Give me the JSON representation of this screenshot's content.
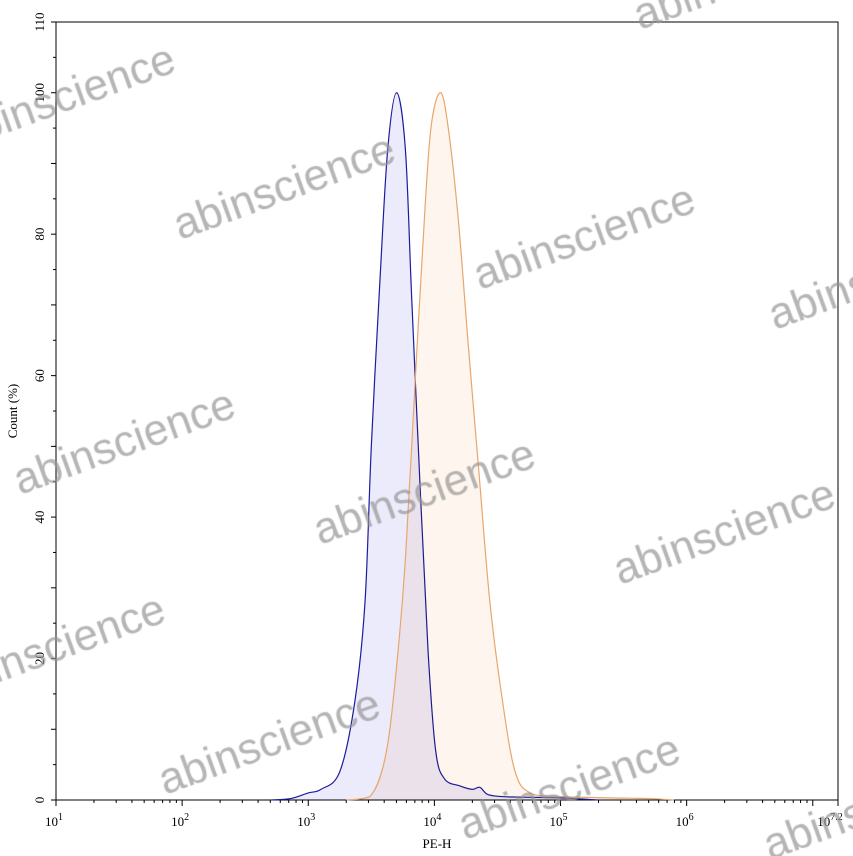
{
  "chart_data": {
    "type": "area",
    "xlabel": "PE-H",
    "ylabel": "Count (%)",
    "xscale": "log10",
    "xlim_log10": [
      1,
      7.2
    ],
    "ylim": [
      0,
      110
    ],
    "x_tick_labels": [
      {
        "base": "10",
        "exp": "1"
      },
      {
        "base": "10",
        "exp": "2"
      },
      {
        "base": "10",
        "exp": "3"
      },
      {
        "base": "10",
        "exp": "4"
      },
      {
        "base": "10",
        "exp": "5"
      },
      {
        "base": "10",
        "exp": "6"
      },
      {
        "base": "10",
        "exp": "7.2"
      }
    ],
    "y_ticks": [
      0,
      20,
      40,
      60,
      80,
      100,
      110
    ],
    "grid": false,
    "series": [
      {
        "line_color": "#1c1c9c",
        "fill_color": "#e4e4fa",
        "log10_x": [
          2.7,
          2.86,
          3.0,
          3.1,
          3.25,
          3.37,
          3.45,
          3.5,
          3.57,
          3.63,
          3.7,
          3.77,
          3.82,
          3.89,
          3.95,
          4.01,
          4.08,
          4.2,
          4.3,
          4.36,
          4.42,
          4.52,
          4.7,
          5.0,
          5.3
        ],
        "count_pct": [
          0,
          0.2,
          1,
          1.5,
          4,
          14,
          28,
          50,
          74,
          92,
          100,
          92,
          71,
          43,
          21,
          7,
          3,
          2,
          1.5,
          1.8,
          0.8,
          0.5,
          0.4,
          0.3,
          0
        ]
      },
      {
        "line_color": "#e8a66c",
        "fill_color": "#fdf2e8",
        "log10_x": [
          3.3,
          3.49,
          3.61,
          3.69,
          3.77,
          3.85,
          3.93,
          3.98,
          4.05,
          4.11,
          4.19,
          4.27,
          4.35,
          4.44,
          4.54,
          4.64,
          4.76,
          5.0,
          5.4,
          5.7,
          5.9
        ],
        "count_pct": [
          0,
          0.5,
          6,
          17,
          34,
          60,
          85,
          96,
          100,
          95,
          82,
          64,
          47,
          28,
          14,
          4,
          1,
          0.5,
          0.3,
          0.2,
          0
        ]
      }
    ]
  },
  "watermark": "abinscience"
}
